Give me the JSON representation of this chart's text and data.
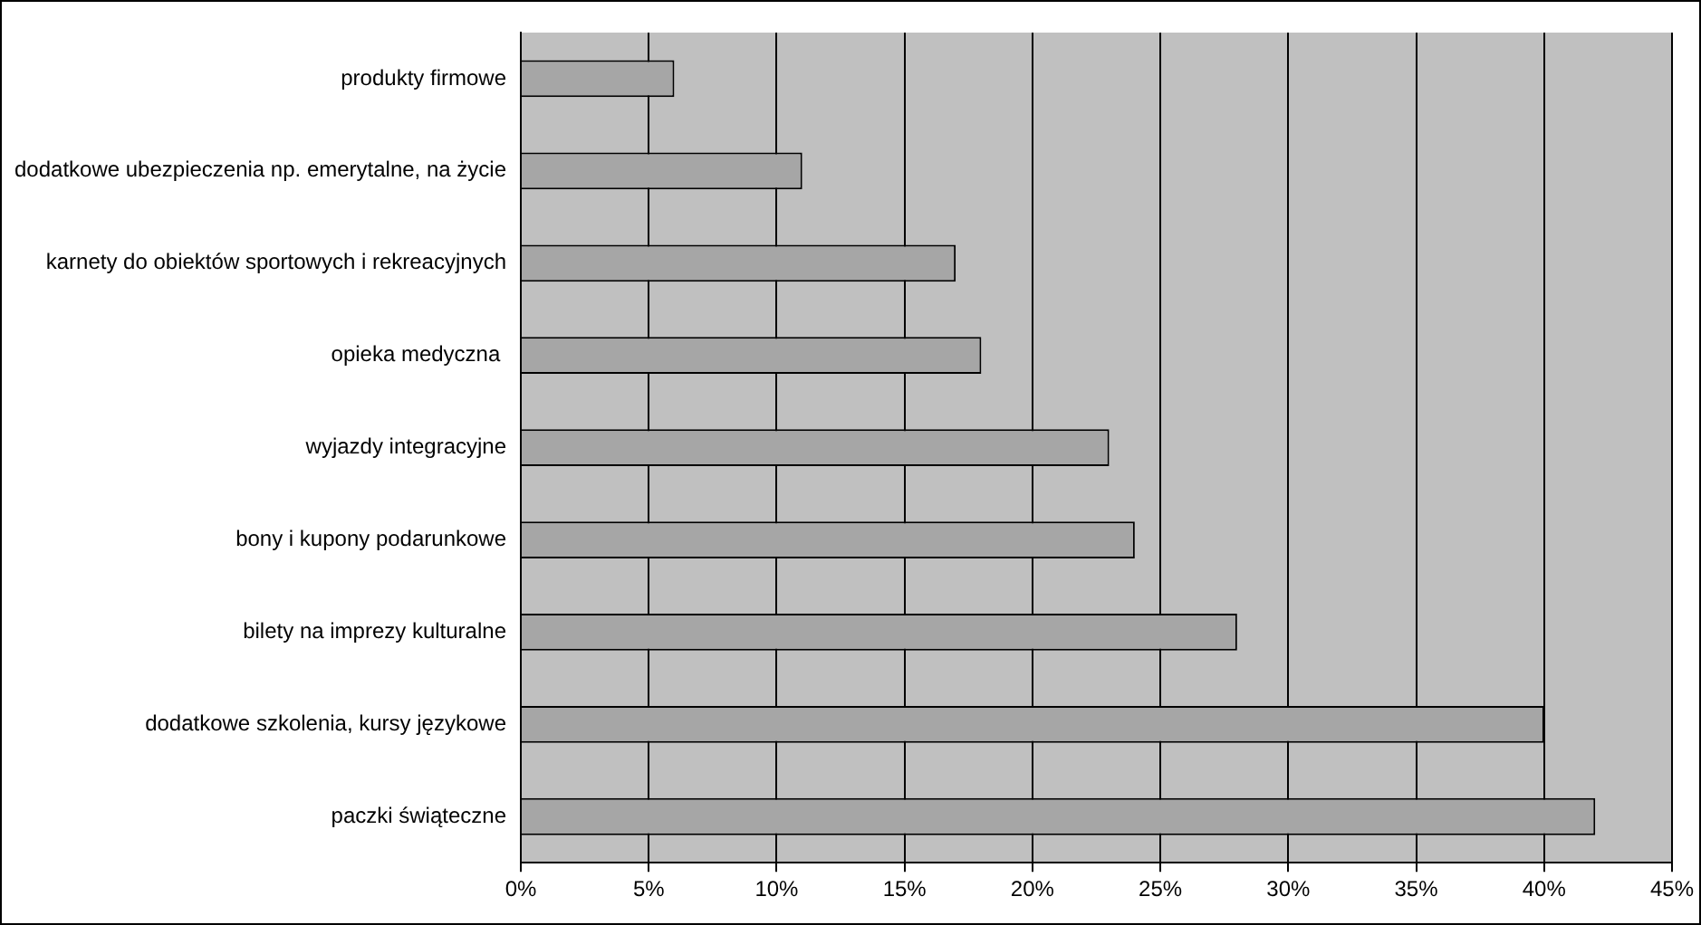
{
  "chart_data": {
    "type": "bar",
    "orientation": "horizontal",
    "categories": [
      "produkty firmowe",
      "dodatkowe ubezpieczenia np. emerytalne, na życie",
      "karnety do obiektów sportowych i rekreacyjnych",
      "opieka medyczna ",
      "wyjazdy integracyjne",
      "bony i kupony podarunkowe",
      "bilety na imprezy kulturalne",
      "dodatkowe szkolenia, kursy językowe",
      "paczki świąteczne"
    ],
    "values": [
      6,
      11,
      17,
      18,
      23,
      24,
      28,
      40,
      42
    ],
    "color": "#a6a6a6",
    "xlim": [
      0,
      45
    ],
    "xticks": [
      {
        "value": 0,
        "label": "0%"
      },
      {
        "value": 5,
        "label": "5%"
      },
      {
        "value": 10,
        "label": "10%"
      },
      {
        "value": 15,
        "label": "15%"
      },
      {
        "value": 20,
        "label": "20%"
      },
      {
        "value": 25,
        "label": "25%"
      },
      {
        "value": 30,
        "label": "30%"
      },
      {
        "value": 35,
        "label": "35%"
      },
      {
        "value": 40,
        "label": "40%"
      },
      {
        "value": 45,
        "label": "45%"
      }
    ],
    "grid": "x",
    "legend": false
  }
}
